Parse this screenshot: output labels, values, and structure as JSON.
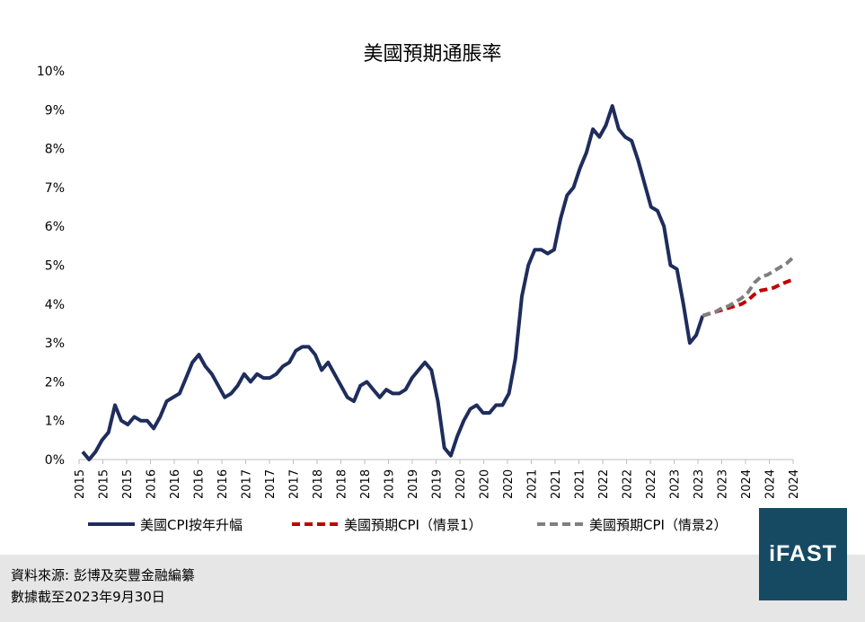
{
  "chart_data": {
    "type": "line",
    "title": "美國預期通脹率",
    "y_ticks": [
      "0%",
      "1%",
      "2%",
      "3%",
      "4%",
      "5%",
      "6%",
      "7%",
      "8%",
      "9%",
      "10%"
    ],
    "ylim": [
      0,
      10
    ],
    "x_tick_labels": [
      "2015",
      "2015",
      "2015",
      "2016",
      "2016",
      "2016",
      "2016",
      "2017",
      "2017",
      "2017",
      "2018",
      "2018",
      "2018",
      "2019",
      "2019",
      "2019",
      "2020",
      "2020",
      "2020",
      "2021",
      "2021",
      "2021",
      "2022",
      "2022",
      "2022",
      "2023",
      "2023",
      "2023",
      "2024",
      "2024",
      "2024"
    ],
    "grid": false,
    "legend_position": "bottom",
    "series": [
      {
        "name": "美國CPI按年升幅",
        "color": "#1f2d5c",
        "style": "solid",
        "values": [
          0.2,
          0.0,
          0.2,
          0.5,
          0.7,
          1.4,
          1.0,
          0.9,
          1.1,
          1.0,
          1.0,
          0.8,
          1.1,
          1.5,
          1.6,
          1.7,
          2.1,
          2.5,
          2.7,
          2.4,
          2.2,
          1.9,
          1.6,
          1.7,
          1.9,
          2.2,
          2.0,
          2.2,
          2.1,
          2.1,
          2.2,
          2.4,
          2.5,
          2.8,
          2.9,
          2.9,
          2.7,
          2.3,
          2.5,
          2.2,
          1.9,
          1.6,
          1.5,
          1.9,
          2.0,
          1.8,
          1.6,
          1.8,
          1.7,
          1.7,
          1.8,
          2.1,
          2.3,
          2.5,
          2.3,
          1.5,
          0.3,
          0.1,
          0.6,
          1.0,
          1.3,
          1.4,
          1.2,
          1.2,
          1.4,
          1.4,
          1.7,
          2.6,
          4.2,
          5.0,
          5.4,
          5.4,
          5.3,
          5.4,
          6.2,
          6.8,
          7.0,
          7.5,
          7.9,
          8.5,
          8.3,
          8.6,
          9.1,
          8.5,
          8.3,
          8.2,
          7.7,
          7.1,
          6.5,
          6.4,
          6.0,
          5.0,
          4.9,
          4.0,
          3.0,
          3.2,
          3.7
        ]
      },
      {
        "name": "美國預期CPI（情景1）",
        "color": "#c00000",
        "style": "dashed",
        "values": [
          3.7,
          3.75,
          3.8,
          3.85,
          3.9,
          3.95,
          4.0,
          4.1,
          4.25,
          4.35,
          4.38,
          4.42,
          4.5,
          4.57,
          4.63
        ]
      },
      {
        "name": "美國預期CPI（情景2）",
        "color": "#7f7f7f",
        "style": "dashed",
        "values": [
          3.7,
          3.75,
          3.8,
          3.9,
          3.95,
          4.05,
          4.15,
          4.3,
          4.55,
          4.7,
          4.75,
          4.85,
          4.95,
          5.05,
          5.2
        ]
      }
    ]
  },
  "footer": {
    "source": "資料來源: 彭博及奕豐金融編纂",
    "date": "數據截至2023年9月30日",
    "logo_text": "iFAST",
    "background": "#e6e6e6",
    "logo_color": "#164a63"
  }
}
